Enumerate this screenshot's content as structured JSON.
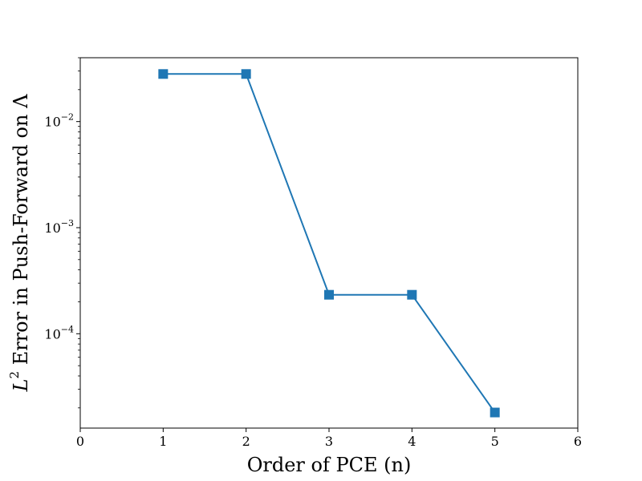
{
  "chart_data": {
    "type": "line",
    "x_label": "Order of PCE (n)",
    "y_label": "L² Error in Push-Forward on Λ",
    "y_label_parts": {
      "base": "L",
      "sup": "2",
      "rest": " Error in Push-Forward on Λ"
    },
    "x_ticks": [
      "0",
      "1",
      "2",
      "3",
      "4",
      "5",
      "6"
    ],
    "y_ticks": [
      {
        "value": 0.01,
        "base": "10",
        "exp": "−2"
      },
      {
        "value": 0.001,
        "base": "10",
        "exp": "−3"
      },
      {
        "value": 0.0001,
        "base": "10",
        "exp": "−4"
      }
    ],
    "xlim": [
      0,
      6
    ],
    "ylim": [
      1.29e-05,
      0.04
    ],
    "y_scale": "log",
    "grid": false,
    "series": [
      {
        "marker": "square",
        "color": "#1f77b4",
        "x": [
          1,
          2,
          3,
          4,
          5
        ],
        "y": [
          0.0281,
          0.0281,
          0.000233,
          0.000233,
          1.81e-05
        ]
      }
    ]
  }
}
